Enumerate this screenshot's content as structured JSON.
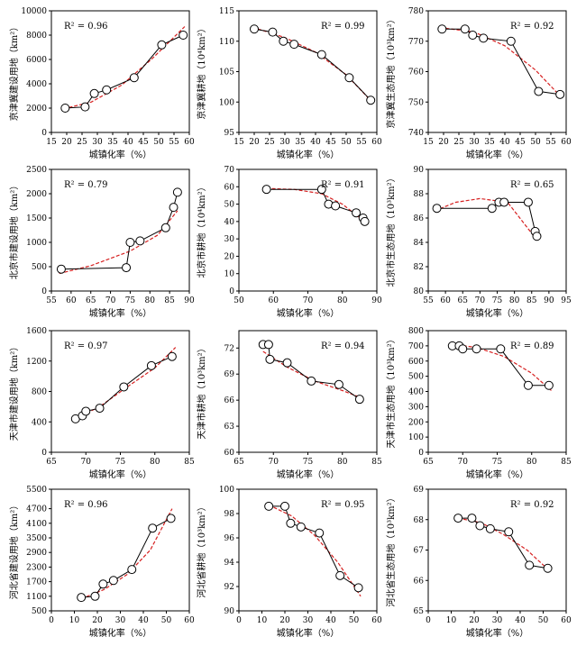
{
  "chart_data": [
    {
      "type": "scatter",
      "xlabel": "城镇化率（%）",
      "ylabel": "京津冀建设用地（km²）",
      "r2": "R² = 0.96",
      "r2_pos": "top-left",
      "xlim": [
        15,
        60
      ],
      "xticks": [
        "15",
        "20",
        "25",
        "30",
        "35",
        "40",
        "45",
        "50",
        "55",
        "60"
      ],
      "ylim": [
        0,
        10000
      ],
      "yticks": [
        "0",
        "2000",
        "4000",
        "6000",
        "8000",
        "10000"
      ],
      "x": [
        19.5,
        26,
        29,
        33,
        42,
        51,
        58
      ],
      "y": [
        2000,
        2100,
        3200,
        3500,
        4500,
        7200,
        8000
      ],
      "trend": [
        [
          19,
          1950
        ],
        [
          28,
          2500
        ],
        [
          38,
          3900
        ],
        [
          48,
          6100
        ],
        [
          58.5,
          8700
        ]
      ]
    },
    {
      "type": "scatter",
      "xlabel": "城镇化率（%）",
      "ylabel": "京津冀耕地（10⁴km²）",
      "r2": "R² = 0.99",
      "r2_pos": "top-right",
      "xlim": [
        15,
        60
      ],
      "xticks": [
        "15",
        "20",
        "25",
        "30",
        "35",
        "40",
        "45",
        "50",
        "55",
        "60"
      ],
      "ylim": [
        95,
        115
      ],
      "yticks": [
        "95",
        "100",
        "105",
        "110",
        "115"
      ],
      "x": [
        20,
        26,
        29.5,
        33,
        42,
        51,
        58
      ],
      "y": [
        112,
        111.5,
        110,
        109.5,
        107.8,
        104,
        100.3
      ],
      "trend": [
        [
          19.5,
          112.3
        ],
        [
          30,
          110.6
        ],
        [
          40,
          108.2
        ],
        [
          50,
          104.5
        ],
        [
          58.5,
          100
        ]
      ]
    },
    {
      "type": "scatter",
      "xlabel": "城镇化率（%）",
      "ylabel": "京津冀生态用地（10³km²）",
      "r2": "R² = 0.92",
      "r2_pos": "top-right",
      "xlim": [
        15,
        60
      ],
      "xticks": [
        "15",
        "20",
        "25",
        "30",
        "35",
        "40",
        "45",
        "50",
        "55",
        "60"
      ],
      "ylim": [
        740,
        780
      ],
      "yticks": [
        "740",
        "750",
        "760",
        "770",
        "780"
      ],
      "x": [
        19.5,
        27,
        29.5,
        33,
        42,
        51,
        58
      ],
      "y": [
        774,
        774,
        772,
        771,
        770,
        753.5,
        752.5
      ],
      "trend": [
        [
          19,
          774.5
        ],
        [
          30,
          773
        ],
        [
          40,
          768.5
        ],
        [
          50,
          760.5
        ],
        [
          58.5,
          751.5
        ]
      ]
    },
    {
      "type": "scatter",
      "xlabel": "城镇化率（%）",
      "ylabel": "北京市建设用地（km²）",
      "r2": "R² = 0.79",
      "r2_pos": "top-left",
      "xlim": [
        55,
        90
      ],
      "xticks": [
        "55",
        "60",
        "65",
        "70",
        "75",
        "80",
        "85",
        "90"
      ],
      "ylim": [
        0,
        2500
      ],
      "yticks": [
        "0",
        "500",
        "1000",
        "1500",
        "2000",
        "2500"
      ],
      "x": [
        57.5,
        74,
        75,
        77.5,
        84,
        86,
        87
      ],
      "y": [
        450,
        480,
        1000,
        1030,
        1300,
        1720,
        2030
      ],
      "trend": [
        [
          57,
          360
        ],
        [
          65,
          520
        ],
        [
          75,
          820
        ],
        [
          82,
          1150
        ],
        [
          87,
          1650
        ]
      ]
    },
    {
      "type": "scatter",
      "xlabel": "城镇化率（%）",
      "ylabel": "北京市耕地（10⁴km²）",
      "r2": "R² = 0.91",
      "r2_pos": "top-right",
      "xlim": [
        50,
        90
      ],
      "xticks": [
        "50",
        "60",
        "70",
        "80",
        "90"
      ],
      "ylim": [
        0,
        70
      ],
      "yticks": [
        "0",
        "10",
        "20",
        "30",
        "40",
        "50",
        "60",
        "70"
      ],
      "x": [
        58,
        74,
        76,
        78,
        84,
        86,
        86.5
      ],
      "y": [
        58.5,
        58.5,
        50,
        49,
        45,
        42,
        40
      ],
      "trend": [
        [
          58,
          59
        ],
        [
          66,
          58.5
        ],
        [
          74,
          56
        ],
        [
          80,
          50
        ],
        [
          86.5,
          40
        ]
      ]
    },
    {
      "type": "scatter",
      "xlabel": "城镇化率（%）",
      "ylabel": "北京市生态用地（10³km²）",
      "r2": "R² = 0.65",
      "r2_pos": "top-right",
      "xlim": [
        55,
        95
      ],
      "xticks": [
        "55",
        "60",
        "65",
        "70",
        "75",
        "80",
        "85",
        "90",
        "95"
      ],
      "ylim": [
        80,
        90
      ],
      "yticks": [
        "80",
        "82",
        "84",
        "86",
        "88",
        "90"
      ],
      "x": [
        57.5,
        73.5,
        75.5,
        77,
        84,
        86,
        86.5
      ],
      "y": [
        86.8,
        86.8,
        87.3,
        87.3,
        87.3,
        84.9,
        84.5
      ],
      "trend": [
        [
          57,
          86.6
        ],
        [
          63,
          87.3
        ],
        [
          70,
          87.6
        ],
        [
          78,
          87.3
        ],
        [
          86.5,
          84.2
        ]
      ]
    },
    {
      "type": "scatter",
      "xlabel": "城镇化率（%）",
      "ylabel": "天津市建设用地（km²）",
      "r2": "R² = 0.97",
      "r2_pos": "top-left",
      "xlim": [
        65,
        85
      ],
      "xticks": [
        "65",
        "70",
        "75",
        "80",
        "85"
      ],
      "ylim": [
        0,
        1600
      ],
      "yticks": [
        "0",
        "400",
        "800",
        "1200",
        "1600"
      ],
      "x": [
        68.5,
        69.5,
        70,
        72,
        75.5,
        79.5,
        82.5
      ],
      "y": [
        440,
        480,
        540,
        580,
        860,
        1140,
        1260
      ],
      "trend": [
        [
          68,
          420
        ],
        [
          72,
          600
        ],
        [
          76,
          860
        ],
        [
          80,
          1110
        ],
        [
          83,
          1380
        ]
      ]
    },
    {
      "type": "scatter",
      "xlabel": "城镇化率（%）",
      "ylabel": "天津市耕地（10³km²）",
      "r2": "R² = 0.94",
      "r2_pos": "top-right",
      "xlim": [
        65,
        85
      ],
      "xticks": [
        "65",
        "70",
        "75",
        "80",
        "85"
      ],
      "ylim": [
        60,
        74
      ],
      "yticks": [
        "60",
        "63",
        "66",
        "69",
        "72"
      ],
      "x": [
        68.5,
        69.3,
        69.5,
        72,
        75.5,
        79.5,
        82.5
      ],
      "y": [
        72.4,
        72.4,
        70.7,
        70.3,
        68.2,
        67.8,
        66.1
      ],
      "trend": [
        [
          68.5,
          71.6
        ],
        [
          72,
          69.8
        ],
        [
          76,
          68.2
        ],
        [
          80,
          67.1
        ],
        [
          83,
          66.2
        ]
      ]
    },
    {
      "type": "scatter",
      "xlabel": "城镇化率（%）",
      "ylabel": "天津市生态用地（10³km²）",
      "r2": "R² = 0.89",
      "r2_pos": "top-right",
      "xlim": [
        65,
        85
      ],
      "xticks": [
        "65",
        "70",
        "75",
        "80",
        "85"
      ],
      "ylim": [
        0,
        800
      ],
      "yticks": [
        "0",
        "100",
        "200",
        "300",
        "400",
        "500",
        "600",
        "700",
        "800"
      ],
      "x": [
        68.5,
        69.5,
        70,
        72,
        75.5,
        79.5,
        82.5
      ],
      "y": [
        700,
        700,
        680,
        680,
        680,
        440,
        440
      ],
      "trend": [
        [
          68.5,
          710
        ],
        [
          72,
          690
        ],
        [
          76,
          630
        ],
        [
          80,
          520
        ],
        [
          83,
          400
        ]
      ]
    },
    {
      "type": "scatter",
      "xlabel": "城镇化率（%）",
      "ylabel": "河北省建设用地（km²）",
      "r2": "R² = 0.96",
      "r2_pos": "top-left",
      "xlim": [
        0,
        60
      ],
      "xticks": [
        "0",
        "10",
        "20",
        "30",
        "40",
        "50",
        "60"
      ],
      "ylim": [
        500,
        5500
      ],
      "yticks": [
        "500",
        "1100",
        "1700",
        "2300",
        "2900",
        "3500",
        "4100",
        "4700",
        "5500"
      ],
      "x": [
        13,
        19,
        22.5,
        27,
        35,
        44,
        52
      ],
      "y": [
        1050,
        1100,
        1600,
        1750,
        2200,
        3900,
        4300
      ],
      "trend": [
        [
          13,
          1000
        ],
        [
          23,
          1380
        ],
        [
          33,
          2000
        ],
        [
          43,
          3000
        ],
        [
          52.5,
          4700
        ]
      ]
    },
    {
      "type": "scatter",
      "xlabel": "城镇化率（%）",
      "ylabel": "河北省耕地（10³km²）",
      "r2": "R² = 0.95",
      "r2_pos": "top-right",
      "xlim": [
        0,
        60
      ],
      "xticks": [
        "0",
        "10",
        "20",
        "30",
        "40",
        "50",
        "60"
      ],
      "ylim": [
        90,
        100
      ],
      "yticks": [
        "90",
        "92",
        "94",
        "96",
        "98",
        "100"
      ],
      "x": [
        13,
        20,
        22.5,
        27,
        35,
        44,
        52
      ],
      "y": [
        98.6,
        98.6,
        97.2,
        96.9,
        96.4,
        92.9,
        91.9
      ],
      "trend": [
        [
          13,
          98.7
        ],
        [
          23,
          97.8
        ],
        [
          33,
          96.2
        ],
        [
          43,
          94
        ],
        [
          53,
          91.2
        ]
      ]
    },
    {
      "type": "scatter",
      "xlabel": "城镇化率（%）",
      "ylabel": "河北省生态用地（10³km²）",
      "r2": "R² = 0.92",
      "r2_pos": "top-right",
      "xlim": [
        0,
        60
      ],
      "xticks": [
        "0",
        "10",
        "20",
        "30",
        "40",
        "50",
        "60"
      ],
      "ylim": [
        65,
        69
      ],
      "yticks": [
        "65",
        "66",
        "67",
        "68",
        "69"
      ],
      "x": [
        13,
        19,
        22.5,
        27,
        35,
        44,
        52
      ],
      "y": [
        68.05,
        68.05,
        67.8,
        67.7,
        67.6,
        66.5,
        66.4
      ],
      "trend": [
        [
          13,
          68.05
        ],
        [
          23,
          67.9
        ],
        [
          33,
          67.5
        ],
        [
          43,
          67
        ],
        [
          53,
          66.3
        ]
      ]
    }
  ]
}
